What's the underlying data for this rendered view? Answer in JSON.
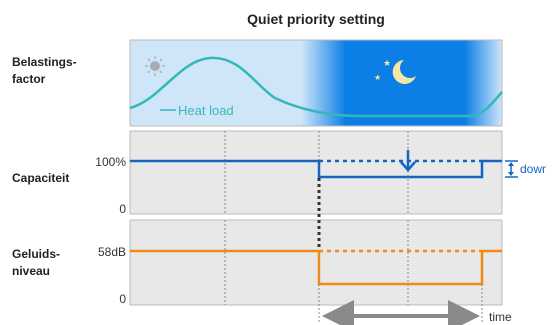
{
  "title": "Quiet priority setting",
  "rows": {
    "load": {
      "label_line1": "Belastings-",
      "label_line2": "factor",
      "curve_label": "Heat load"
    },
    "capacity": {
      "label": "Capaciteit",
      "tick_top": "100%",
      "tick_bottom": "0",
      "annotation": "dowr"
    },
    "noise": {
      "label_line1": "Geluids-",
      "label_line2": "niveau",
      "tick_top": "58dB",
      "tick_bottom": "0"
    }
  },
  "time_label": "time",
  "colors": {
    "capacity": "#1565c0",
    "noise": "#f08a17",
    "heat_curve": "#33b8b8",
    "night": "#0a7ee6",
    "day": "#cfe6f9",
    "panel": "#e8e8e8"
  },
  "icons": {
    "day": "sun-icon",
    "night": "moon-stars-icon"
  }
}
